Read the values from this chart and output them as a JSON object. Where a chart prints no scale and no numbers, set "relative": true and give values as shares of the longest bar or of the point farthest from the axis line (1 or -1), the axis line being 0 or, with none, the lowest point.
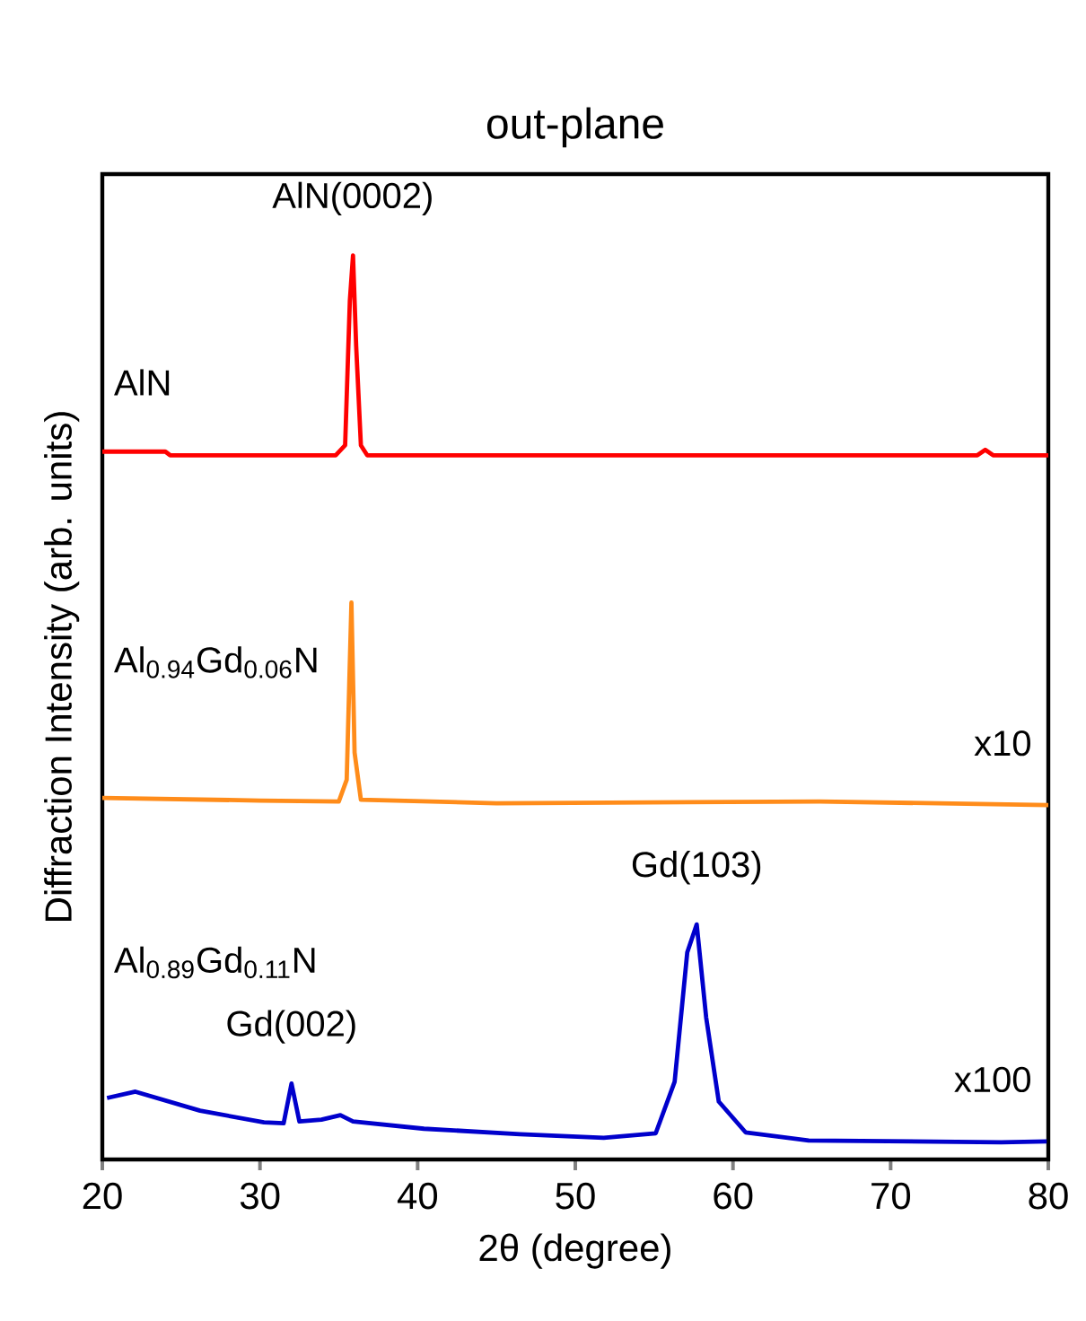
{
  "chart_data": {
    "type": "line",
    "title": "out-plane",
    "xlabel": "2θ (degree)",
    "ylabel": "Diffraction Intensity (arb. units)",
    "relative": true,
    "xlim": [
      20,
      80
    ],
    "xticks": [
      20,
      30,
      40,
      50,
      60,
      70,
      80
    ],
    "grid": false,
    "marker": "none",
    "line_style": "solid",
    "series": [
      {
        "name": "AlN",
        "color": "#ff0000",
        "x": [
          20,
          24,
          24.3,
          34.8,
          35.4,
          35.7,
          35.9,
          36.1,
          36.4,
          36.8,
          75.5,
          76,
          76.5,
          80
        ],
        "values": [
          0.783,
          0.783,
          0.779,
          0.779,
          0.79,
          0.95,
          1,
          0.9,
          0.79,
          0.779,
          0.779,
          0.785,
          0.779,
          0.779
        ]
      },
      {
        "name": "Al$_{0.94}$Gd$_{0.06}$N",
        "color": "#ff8c1a",
        "x": [
          20,
          30,
          35,
          35.5,
          35.8,
          36,
          36.4,
          45,
          65.5,
          80
        ],
        "values": [
          0.4,
          0.397,
          0.396,
          0.42,
          0.616,
          0.45,
          0.398,
          0.394,
          0.396,
          0.392
        ]
      },
      {
        "name": "Al$_{0.89}$Gd$_{0.11}$N",
        "color": "#0000cc",
        "x": [
          20.3,
          22.1,
          26.2,
          30.25,
          31.5,
          32,
          32.5,
          33.9,
          35.1,
          35.9,
          40.4,
          46.5,
          51.8,
          55.1,
          56.3,
          57.1,
          57.7,
          58.3,
          59.1,
          60.8,
          64.8,
          70.9,
          77,
          79.9
        ],
        "values": [
          0.068,
          0.075,
          0.054,
          0.041,
          0.04,
          0.084,
          0.042,
          0.044,
          0.049,
          0.042,
          0.034,
          0.028,
          0.024,
          0.029,
          0.086,
          0.229,
          0.26,
          0.157,
          0.064,
          0.03,
          0.021,
          0.02,
          0.019,
          0.02
        ]
      }
    ],
    "annotations": [
      {
        "text": "AlN(0002)",
        "x": 35.9,
        "y": 1
      },
      {
        "text": "x10",
        "x": 79,
        "y": 0.392
      },
      {
        "text": "Gd(002)",
        "x": 32,
        "y": 0.084
      },
      {
        "text": "Gd(103)",
        "x": 57.7,
        "y": 0.26
      },
      {
        "text": "x100",
        "x": 79,
        "y": 0.02
      }
    ]
  }
}
